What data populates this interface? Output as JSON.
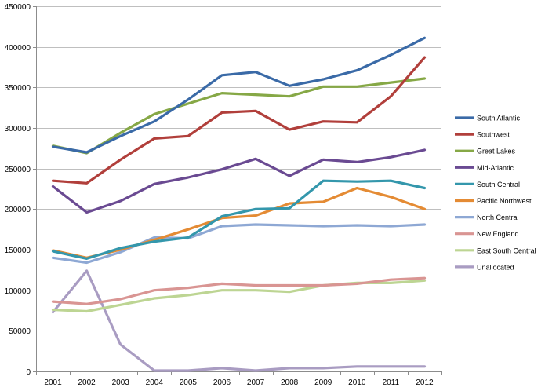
{
  "chart_data": {
    "type": "line",
    "title": "",
    "xlabel": "",
    "ylabel": "",
    "x": [
      "2001",
      "2002",
      "2003",
      "2004",
      "2005",
      "2006",
      "2007",
      "2008",
      "2009",
      "2010",
      "2011",
      "2012"
    ],
    "ylim": [
      0,
      450000
    ],
    "yticks": [
      "0",
      "50000",
      "100000",
      "150000",
      "200000",
      "250000",
      "300000",
      "350000",
      "400000",
      "450000"
    ],
    "grid": "horizontal",
    "legend_position": "right",
    "series": [
      {
        "name": "South Atlantic",
        "color": "#3a6aa7",
        "values": [
          277000,
          270000,
          290000,
          308000,
          335000,
          365000,
          369000,
          352000,
          360000,
          371000,
          390000,
          411000
        ]
      },
      {
        "name": "Southwest",
        "color": "#b13f3b",
        "values": [
          235000,
          232000,
          261000,
          287000,
          290000,
          319000,
          321000,
          298000,
          308000,
          307000,
          339000,
          387000
        ]
      },
      {
        "name": "Great Lakes",
        "color": "#86a846",
        "values": [
          278000,
          269000,
          294000,
          317000,
          330000,
          343000,
          341000,
          339000,
          351000,
          351000,
          356000,
          361000
        ]
      },
      {
        "name": "Mid-Atlantic",
        "color": "#6a4a92",
        "values": [
          228000,
          196000,
          210000,
          231000,
          239000,
          249000,
          262000,
          241000,
          261000,
          258000,
          264000,
          273000
        ]
      },
      {
        "name": "South Central",
        "color": "#3497ac",
        "values": [
          148000,
          139000,
          152000,
          160000,
          165000,
          191000,
          200000,
          201000,
          235000,
          234000,
          235000,
          226000
        ]
      },
      {
        "name": "Pacific Northwest",
        "color": "#e48b34",
        "values": [
          149000,
          140000,
          150000,
          162000,
          175000,
          189000,
          192000,
          207000,
          209000,
          226000,
          215000,
          200000
        ]
      },
      {
        "name": "North Central",
        "color": "#8ea8d4",
        "values": [
          140000,
          134000,
          147000,
          165000,
          164000,
          179000,
          181000,
          180000,
          179000,
          180000,
          179000,
          181000
        ]
      },
      {
        "name": "New England",
        "color": "#d99593",
        "values": [
          86000,
          83000,
          89000,
          100000,
          103000,
          108000,
          106000,
          106000,
          106000,
          108000,
          113000,
          115000
        ]
      },
      {
        "name": "East South Central",
        "color": "#bdd593",
        "values": [
          76000,
          74000,
          82000,
          90000,
          94000,
          100000,
          100000,
          98000,
          106000,
          109000,
          109000,
          112000
        ]
      },
      {
        "name": "Unallocated",
        "color": "#a99cc2",
        "values": [
          73000,
          124000,
          33000,
          1000,
          1000,
          4000,
          1000,
          4000,
          4000,
          6000,
          6000,
          6000
        ]
      }
    ]
  }
}
